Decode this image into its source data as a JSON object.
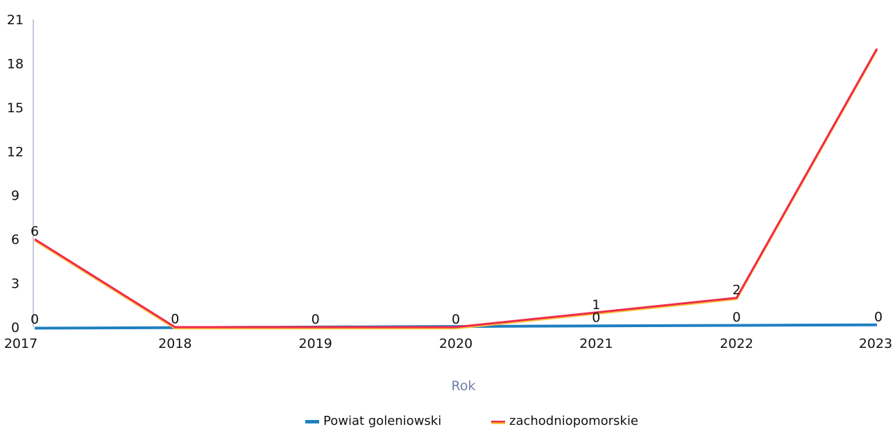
{
  "chart_data": {
    "type": "line",
    "title": "",
    "xlabel": "Rok",
    "ylabel": "",
    "x": [
      "2017",
      "2018",
      "2019",
      "2020",
      "2021",
      "2022",
      "2023"
    ],
    "ylim": [
      0,
      21
    ],
    "yticks": [
      "0",
      "3",
      "6",
      "9",
      "12",
      "15",
      "18",
      "21"
    ],
    "grid": false,
    "legend_position": "bottom",
    "series": [
      {
        "name": "Powiat goleniowski",
        "values": [
          0,
          0,
          0,
          0,
          0,
          0,
          0
        ],
        "data_labels": [
          "0",
          "0",
          "0",
          "0",
          "0",
          "0",
          "0"
        ],
        "color": "#1f7fc0"
      },
      {
        "name": "zachodniopomorskie",
        "values": [
          6,
          0,
          0,
          0,
          1,
          2,
          19
        ],
        "data_labels": [
          "6",
          "",
          "",
          "",
          "1",
          "2",
          ""
        ],
        "color": "#f02a4a",
        "secondary_color": "#f7c33c"
      }
    ]
  }
}
